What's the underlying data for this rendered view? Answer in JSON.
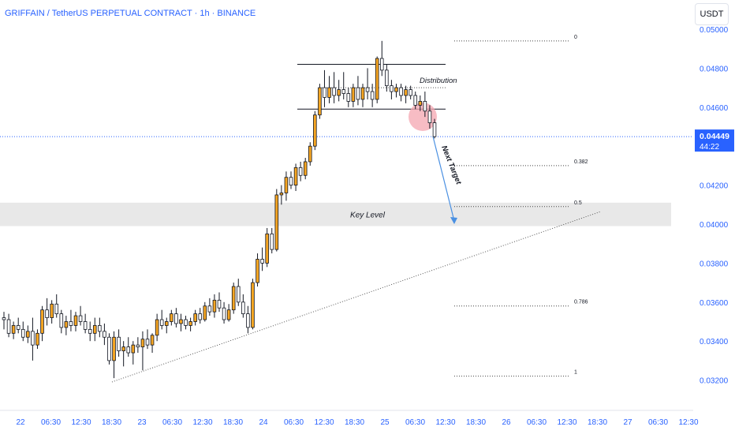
{
  "chart_title": "GRIFFAIN / TetherUS PERPETUAL CONTRACT · 1h · BINANCE",
  "price_unit": "USDT",
  "colors": {
    "up_body": "#f6a623",
    "down_body": "#ffffff",
    "wick": "#131722",
    "axis_text": "#2962ff",
    "current_price_bg": "#2962ff",
    "key_level_zone": "#e0e0e0",
    "highlight_circle": "#f4a5b0",
    "arrow": "#4a90e2"
  },
  "icons": [
    "unit-selector-icon"
  ],
  "chart_data": {
    "type": "candlestick",
    "title": "GRIFFAIN / TetherUS PERPETUAL CONTRACT · 1h · BINANCE",
    "y_unit": "USDT",
    "ylim": [
      0.0305,
      0.0505
    ],
    "y_ticks": [
      "0.05000",
      "0.04800",
      "0.04600",
      "0.04200",
      "0.04000",
      "0.03800",
      "0.03600",
      "0.03400",
      "0.03200"
    ],
    "x_ticks": [
      "22",
      "06:30",
      "12:30",
      "18:30",
      "23",
      "06:30",
      "12:30",
      "18:30",
      "24",
      "06:30",
      "12:30",
      "18:30",
      "25",
      "06:30",
      "12:30",
      "18:30",
      "26",
      "06:30",
      "12:30",
      "18:30",
      "27",
      "06:30",
      "12:30"
    ],
    "current_price": "0.04449",
    "countdown": "44:22",
    "fib_levels": [
      {
        "label": "0",
        "price": 0.0494
      },
      {
        "label": "0.382",
        "price": 0.043
      },
      {
        "label": "0.5",
        "price": 0.0409
      },
      {
        "label": "0.786",
        "price": 0.0358
      },
      {
        "label": "1",
        "price": 0.0322
      }
    ],
    "key_level": {
      "label": "Key Level",
      "top": 0.0411,
      "bottom": 0.0399
    },
    "distribution": {
      "label": "Distribution",
      "top": 0.0482,
      "bottom": 0.0459
    },
    "next_target_label": "Next Target",
    "grid": false,
    "candles_ohlc": [
      [
        0.0352,
        0.0355,
        0.0346,
        0.0351
      ],
      [
        0.0351,
        0.0354,
        0.0342,
        0.0344
      ],
      [
        0.0344,
        0.035,
        0.0341,
        0.0348
      ],
      [
        0.0348,
        0.0352,
        0.0344,
        0.0346
      ],
      [
        0.0346,
        0.035,
        0.034,
        0.0342
      ],
      [
        0.0342,
        0.0348,
        0.0339,
        0.0345
      ],
      [
        0.0345,
        0.0352,
        0.033,
        0.0338
      ],
      [
        0.0338,
        0.0346,
        0.0336,
        0.0344
      ],
      [
        0.0344,
        0.0358,
        0.034,
        0.0356
      ],
      [
        0.0356,
        0.0362,
        0.0348,
        0.0352
      ],
      [
        0.0352,
        0.0361,
        0.0349,
        0.0359
      ],
      [
        0.0359,
        0.0364,
        0.0352,
        0.0354
      ],
      [
        0.0354,
        0.0356,
        0.0344,
        0.0347
      ],
      [
        0.0347,
        0.0353,
        0.0343,
        0.035
      ],
      [
        0.035,
        0.0356,
        0.0345,
        0.0348
      ],
      [
        0.0348,
        0.0355,
        0.0345,
        0.0353
      ],
      [
        0.0353,
        0.0358,
        0.0348,
        0.035
      ],
      [
        0.035,
        0.0354,
        0.0344,
        0.0346
      ],
      [
        0.0346,
        0.035,
        0.034,
        0.0344
      ],
      [
        0.0344,
        0.0352,
        0.034,
        0.0348
      ],
      [
        0.0348,
        0.0352,
        0.0342,
        0.0345
      ],
      [
        0.0345,
        0.0349,
        0.0338,
        0.0342
      ],
      [
        0.0342,
        0.0344,
        0.0328,
        0.033
      ],
      [
        0.033,
        0.0345,
        0.0321,
        0.0342
      ],
      [
        0.0342,
        0.0346,
        0.0332,
        0.0335
      ],
      [
        0.0335,
        0.034,
        0.0327,
        0.0337
      ],
      [
        0.0337,
        0.0342,
        0.0332,
        0.0334
      ],
      [
        0.0334,
        0.034,
        0.0328,
        0.0338
      ],
      [
        0.0338,
        0.0342,
        0.0334,
        0.0337
      ],
      [
        0.0337,
        0.0345,
        0.0325,
        0.0341
      ],
      [
        0.0341,
        0.0346,
        0.0336,
        0.0338
      ],
      [
        0.0338,
        0.0344,
        0.0334,
        0.0343
      ],
      [
        0.0343,
        0.0354,
        0.034,
        0.0351
      ],
      [
        0.0351,
        0.0356,
        0.0346,
        0.0348
      ],
      [
        0.0348,
        0.0352,
        0.0344,
        0.035
      ],
      [
        0.035,
        0.0356,
        0.0348,
        0.0354
      ],
      [
        0.0354,
        0.0357,
        0.0347,
        0.0349
      ],
      [
        0.0349,
        0.0354,
        0.0345,
        0.0351
      ],
      [
        0.0351,
        0.0353,
        0.0346,
        0.0348
      ],
      [
        0.0348,
        0.0352,
        0.0345,
        0.035
      ],
      [
        0.035,
        0.0356,
        0.0348,
        0.0354
      ],
      [
        0.0354,
        0.0357,
        0.0349,
        0.0351
      ],
      [
        0.0351,
        0.036,
        0.035,
        0.0358
      ],
      [
        0.0358,
        0.0362,
        0.0353,
        0.0355
      ],
      [
        0.0355,
        0.0364,
        0.0352,
        0.0361
      ],
      [
        0.0361,
        0.0365,
        0.0355,
        0.0357
      ],
      [
        0.0357,
        0.036,
        0.0349,
        0.0351
      ],
      [
        0.0351,
        0.0359,
        0.035,
        0.0356
      ],
      [
        0.0356,
        0.037,
        0.0354,
        0.0368
      ],
      [
        0.0368,
        0.0372,
        0.0358,
        0.036
      ],
      [
        0.036,
        0.0364,
        0.0352,
        0.0354
      ],
      [
        0.0354,
        0.0358,
        0.0344,
        0.0347
      ],
      [
        0.0347,
        0.0372,
        0.0346,
        0.037
      ],
      [
        0.037,
        0.0385,
        0.0368,
        0.0382
      ],
      [
        0.0382,
        0.0388,
        0.0376,
        0.038
      ],
      [
        0.038,
        0.0398,
        0.0378,
        0.0395
      ],
      [
        0.0395,
        0.0398,
        0.0385,
        0.0387
      ],
      [
        0.0387,
        0.0418,
        0.0386,
        0.0415
      ],
      [
        0.0415,
        0.042,
        0.041,
        0.0416
      ],
      [
        0.0416,
        0.0427,
        0.0412,
        0.0424
      ],
      [
        0.0424,
        0.0427,
        0.0418,
        0.042
      ],
      [
        0.042,
        0.0431,
        0.0417,
        0.0429
      ],
      [
        0.0429,
        0.0432,
        0.0422,
        0.0425
      ],
      [
        0.0425,
        0.0434,
        0.0423,
        0.0432
      ],
      [
        0.0432,
        0.0442,
        0.043,
        0.044
      ],
      [
        0.044,
        0.0458,
        0.0438,
        0.0456
      ],
      [
        0.0456,
        0.0472,
        0.0454,
        0.047
      ],
      [
        0.047,
        0.0479,
        0.046,
        0.0465
      ],
      [
        0.0465,
        0.0476,
        0.0462,
        0.047
      ],
      [
        0.047,
        0.0478,
        0.0462,
        0.0466
      ],
      [
        0.0466,
        0.0474,
        0.0463,
        0.0469
      ],
      [
        0.0469,
        0.0478,
        0.0464,
        0.0467
      ],
      [
        0.0467,
        0.047,
        0.046,
        0.0463
      ],
      [
        0.0463,
        0.0472,
        0.046,
        0.047
      ],
      [
        0.047,
        0.0476,
        0.0461,
        0.0464
      ],
      [
        0.0464,
        0.0472,
        0.046,
        0.047
      ],
      [
        0.047,
        0.048,
        0.0464,
        0.0468
      ],
      [
        0.0468,
        0.0472,
        0.046,
        0.0464
      ],
      [
        0.0464,
        0.0486,
        0.0462,
        0.0485
      ],
      [
        0.0485,
        0.0494,
        0.0476,
        0.0479
      ],
      [
        0.0479,
        0.0482,
        0.0468,
        0.0471
      ],
      [
        0.0471,
        0.0474,
        0.0464,
        0.0468
      ],
      [
        0.0468,
        0.0472,
        0.0465,
        0.047
      ],
      [
        0.047,
        0.0472,
        0.0463,
        0.0466
      ],
      [
        0.0466,
        0.0471,
        0.0462,
        0.0469
      ],
      [
        0.0469,
        0.0471,
        0.0464,
        0.0466
      ],
      [
        0.0466,
        0.0468,
        0.0459,
        0.0461
      ],
      [
        0.0461,
        0.0466,
        0.0458,
        0.0463
      ],
      [
        0.0463,
        0.0468,
        0.0455,
        0.0458
      ],
      [
        0.0458,
        0.0461,
        0.0449,
        0.0452
      ],
      [
        0.0452,
        0.0454,
        0.0444,
        0.04449
      ]
    ]
  }
}
